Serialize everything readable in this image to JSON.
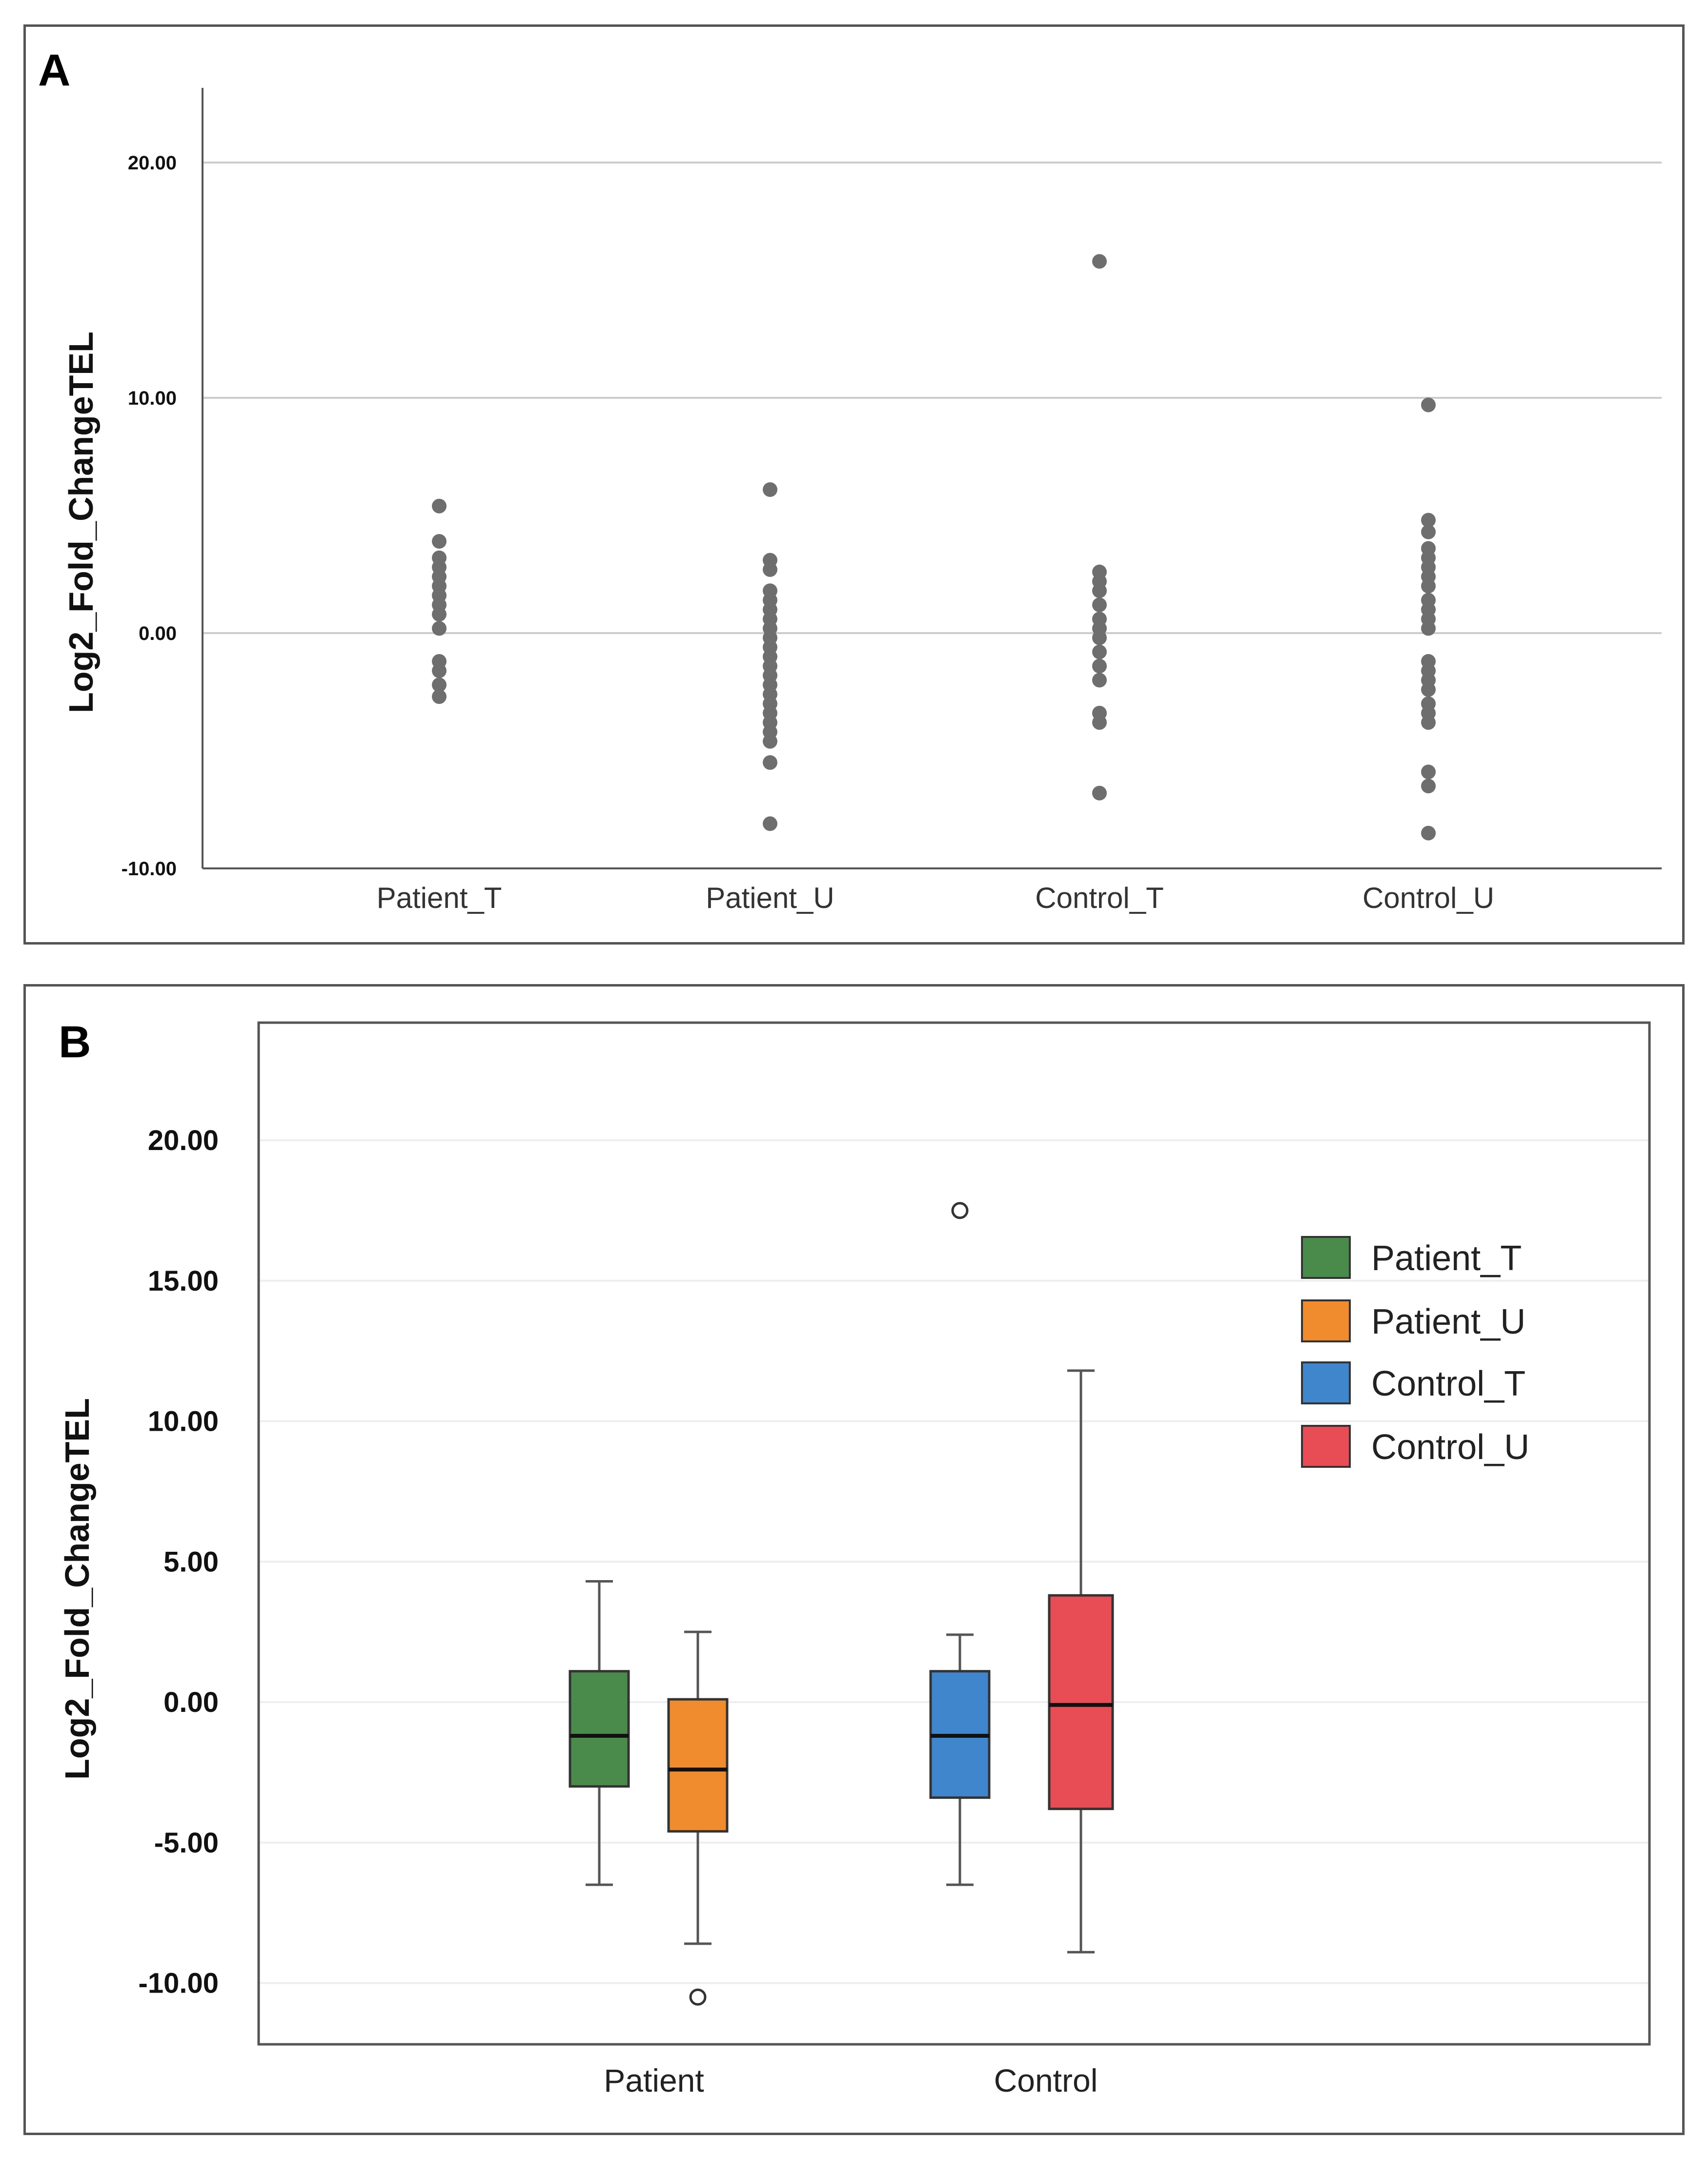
{
  "chart_data": [
    {
      "panel": "A",
      "type": "scatter",
      "panel_label": "A",
      "ylabel": "Log2_Fold_ChangeTEL",
      "ylim": [
        -10,
        23
      ],
      "yticks": [
        20,
        10,
        0,
        -10
      ],
      "ytick_labels": [
        "20.00",
        "10.00",
        "0.00",
        "-10.00"
      ],
      "categories": [
        "Patient_T",
        "Patient_U",
        "Control_T",
        "Control_U"
      ],
      "grid": true,
      "point_color": "#6e6e6e",
      "series": [
        {
          "name": "Patient_T",
          "values": [
            5.4,
            3.9,
            3.2,
            2.8,
            2.4,
            2.0,
            1.6,
            1.2,
            0.8,
            0.2,
            -1.2,
            -1.6,
            -2.2,
            -2.7
          ]
        },
        {
          "name": "Patient_U",
          "values": [
            6.1,
            3.1,
            2.7,
            1.8,
            1.4,
            1.0,
            0.6,
            0.2,
            -0.2,
            -0.6,
            -1.0,
            -1.4,
            -1.8,
            -2.2,
            -2.6,
            -3.0,
            -3.4,
            -3.8,
            -4.2,
            -4.6,
            -5.5,
            -8.1
          ]
        },
        {
          "name": "Control_T",
          "values": [
            15.8,
            2.6,
            2.2,
            1.8,
            1.2,
            0.6,
            0.2,
            -0.2,
            -0.8,
            -1.4,
            -2.0,
            -3.4,
            -3.8,
            -6.8
          ]
        },
        {
          "name": "Control_U",
          "values": [
            9.7,
            4.8,
            4.3,
            3.6,
            3.2,
            2.8,
            2.4,
            2.0,
            1.4,
            1.0,
            0.6,
            0.2,
            -1.2,
            -1.6,
            -2.0,
            -2.4,
            -3.0,
            -3.4,
            -3.8,
            -5.9,
            -6.5,
            -8.5
          ]
        }
      ]
    },
    {
      "panel": "B",
      "type": "box",
      "panel_label": "B",
      "ylabel": "Log2_Fold_ChangeTEL",
      "ylim": [
        -12,
        24
      ],
      "yticks": [
        20,
        15,
        10,
        5,
        0,
        -5,
        -10
      ],
      "ytick_labels": [
        "20.00",
        "15.00",
        "10.00",
        "5.00",
        "0.00",
        "-5.00",
        "-10.00"
      ],
      "categories": [
        "Patient",
        "Control"
      ],
      "grid": true,
      "legend_position": "right",
      "series": [
        {
          "name": "Patient_T",
          "group": "Patient",
          "color": "#4a8a4a",
          "whisker_low": -6.5,
          "q1": -3.0,
          "median": -1.2,
          "q3": 1.1,
          "whisker_high": 4.3,
          "outliers": []
        },
        {
          "name": "Patient_U",
          "group": "Patient",
          "color": "#f08c2e",
          "whisker_low": -8.6,
          "q1": -4.6,
          "median": -2.4,
          "q3": 0.1,
          "whisker_high": 2.5,
          "outliers": [
            -10.5
          ]
        },
        {
          "name": "Control_T",
          "group": "Control",
          "color": "#3f86cc",
          "whisker_low": -6.5,
          "q1": -3.4,
          "median": -1.2,
          "q3": 1.1,
          "whisker_high": 2.4,
          "outliers": [
            17.5
          ]
        },
        {
          "name": "Control_U",
          "group": "Control",
          "color": "#e84c55",
          "whisker_low": -8.9,
          "q1": -3.8,
          "median": -0.1,
          "q3": 3.8,
          "whisker_high": 11.8,
          "outliers": []
        }
      ]
    }
  ]
}
